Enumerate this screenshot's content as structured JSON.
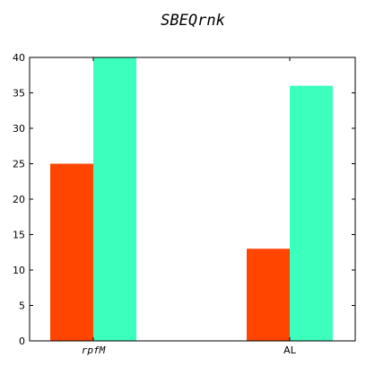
{
  "chart_data": {
    "type": "bar",
    "title": "SBEQrnk",
    "xlabel": "",
    "ylabel": "",
    "categories": [
      "rpfM",
      "AL"
    ],
    "series": [
      {
        "values": [
          25,
          13
        ],
        "color": "#ff4500"
      },
      {
        "values": [
          40,
          36
        ],
        "color": "#3dffbd"
      }
    ],
    "ylim": [
      0,
      40
    ],
    "yticks": [
      0,
      5,
      10,
      15,
      20,
      25,
      30,
      35,
      40
    ],
    "grid": false,
    "legend": "none"
  }
}
